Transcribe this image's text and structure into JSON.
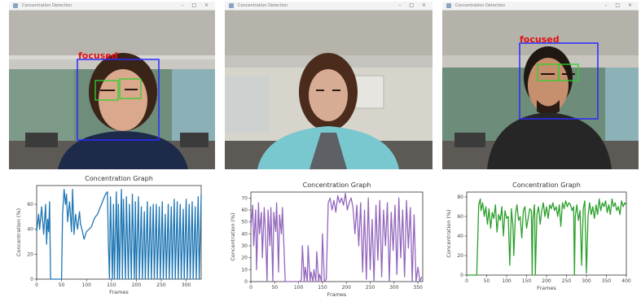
{
  "windows": [
    {
      "title": "Concentration Detection",
      "controls": "– □ ×",
      "focus_label": "focused",
      "person": "female-hoodie",
      "detection": true
    },
    {
      "title": "Concentration Detection",
      "controls": "– □ ×",
      "focus_label": "",
      "person": "female-blue",
      "detection": false
    },
    {
      "title": "Concentration Detection",
      "controls": "– □ ×",
      "focus_label": "focused",
      "person": "male-jacket",
      "detection": true
    }
  ],
  "colors": {
    "face_box": "#2a2aff",
    "eye_box": "#2ed12e",
    "focus_text": "#e01010"
  },
  "chart_data": [
    {
      "type": "line",
      "title": "Concentration Graph",
      "xlabel": "Frames",
      "ylabel": "Concentration (%)",
      "xlim": [
        0,
        330
      ],
      "ylim": [
        0,
        75
      ],
      "xticks": [
        0,
        50,
        100,
        150,
        200,
        250,
        300
      ],
      "yticks": [
        0,
        20,
        40,
        60
      ],
      "color": "#1f77b4",
      "series": [
        {
          "x": [
            0,
            4,
            6,
            10,
            14,
            18,
            20,
            22,
            24,
            26,
            28,
            32,
            35,
            38,
            45,
            50,
            52,
            55,
            58,
            60,
            62,
            66,
            70,
            72,
            75,
            78,
            82,
            86,
            88,
            92,
            95,
            100,
            105,
            110,
            115,
            118,
            122,
            126,
            130,
            134,
            138,
            142,
            144,
            146,
            148,
            152,
            154,
            156,
            160,
            162,
            164,
            166,
            170,
            172,
            174,
            178,
            180,
            184,
            186,
            190,
            192,
            196,
            198,
            200,
            204,
            206,
            210,
            212,
            216,
            218,
            222,
            224,
            228,
            230,
            234,
            236,
            240,
            242,
            246,
            248,
            252,
            254,
            258,
            260,
            264,
            266,
            270,
            272,
            276,
            278,
            282,
            284,
            288,
            290,
            294,
            296,
            300,
            302,
            306,
            308,
            312,
            314,
            318,
            320,
            324,
            326,
            330
          ],
          "y": [
            38,
            52,
            40,
            58,
            36,
            60,
            28,
            48,
            38,
            62,
            0,
            0,
            0,
            0,
            0,
            0,
            52,
            72,
            60,
            68,
            46,
            62,
            38,
            72,
            36,
            52,
            40,
            54,
            44,
            38,
            32,
            38,
            40,
            42,
            48,
            50,
            52,
            56,
            60,
            64,
            68,
            70,
            28,
            0,
            66,
            0,
            60,
            0,
            70,
            0,
            60,
            0,
            72,
            0,
            64,
            0,
            66,
            0,
            60,
            0,
            68,
            0,
            62,
            0,
            66,
            0,
            58,
            0,
            54,
            0,
            62,
            0,
            58,
            0,
            60,
            0,
            60,
            0,
            58,
            0,
            62,
            0,
            52,
            0,
            60,
            0,
            58,
            0,
            64,
            0,
            62,
            0,
            60,
            0,
            56,
            0,
            64,
            0,
            60,
            0,
            62,
            0,
            58,
            0,
            66,
            0,
            68
          ]
        }
      ]
    },
    {
      "type": "line",
      "title": "Concentration Graph",
      "xlabel": "Frames",
      "ylabel": "Concentration (%)",
      "xlim": [
        0,
        360
      ],
      "ylim": [
        0,
        75
      ],
      "xticks": [
        0,
        50,
        100,
        150,
        200,
        250,
        300,
        350
      ],
      "yticks": [
        0,
        10,
        20,
        30,
        40,
        50,
        60,
        70
      ],
      "color": "#9467bd",
      "series": [
        {
          "x": [
            0,
            4,
            6,
            10,
            12,
            16,
            18,
            22,
            24,
            28,
            30,
            34,
            36,
            40,
            42,
            46,
            48,
            52,
            54,
            58,
            60,
            64,
            66,
            70,
            72,
            76,
            80,
            85,
            88,
            92,
            96,
            100,
            103,
            106,
            108,
            112,
            114,
            118,
            120,
            124,
            126,
            130,
            132,
            136,
            138,
            142,
            144,
            148,
            150,
            154,
            158,
            162,
            166,
            170,
            174,
            178,
            182,
            186,
            190,
            194,
            198,
            202,
            206,
            210,
            214,
            218,
            222,
            226,
            230,
            234,
            238,
            242,
            246,
            250,
            254,
            258,
            262,
            266,
            270,
            274,
            278,
            282,
            286,
            290,
            294,
            298,
            302,
            306,
            310,
            314,
            318,
            322,
            326,
            330,
            334,
            338,
            342,
            346,
            350,
            354,
            358
          ],
          "y": [
            45,
            64,
            30,
            60,
            10,
            66,
            40,
            58,
            20,
            62,
            46,
            0,
            60,
            30,
            62,
            0,
            58,
            42,
            66,
            8,
            56,
            40,
            62,
            22,
            0,
            0,
            0,
            0,
            0,
            0,
            0,
            0,
            0,
            2,
            30,
            0,
            12,
            0,
            30,
            0,
            8,
            0,
            10,
            0,
            25,
            0,
            6,
            0,
            40,
            0,
            2,
            66,
            70,
            60,
            68,
            58,
            72,
            66,
            70,
            64,
            74,
            60,
            66,
            70,
            62,
            40,
            64,
            30,
            66,
            8,
            60,
            2,
            70,
            10,
            52,
            0,
            64,
            18,
            68,
            4,
            60,
            30,
            66,
            0,
            58,
            26,
            64,
            6,
            70,
            20,
            60,
            4,
            68,
            28,
            62,
            0,
            56,
            0,
            12,
            0,
            4
          ]
        }
      ]
    },
    {
      "type": "line",
      "title": "Concentration Graph",
      "xlabel": "Frames",
      "ylabel": "Concentration (%)",
      "xlim": [
        0,
        400
      ],
      "ylim": [
        0,
        85
      ],
      "xticks": [
        0,
        50,
        100,
        150,
        200,
        250,
        300,
        350,
        400
      ],
      "yticks": [
        0,
        20,
        40,
        60,
        80
      ],
      "color": "#2ca02c",
      "series": [
        {
          "x": [
            0,
            10,
            20,
            25,
            28,
            30,
            34,
            36,
            40,
            44,
            48,
            52,
            56,
            60,
            64,
            68,
            72,
            76,
            80,
            84,
            88,
            92,
            96,
            100,
            104,
            108,
            112,
            116,
            118,
            122,
            126,
            130,
            134,
            138,
            142,
            146,
            150,
            154,
            158,
            162,
            164,
            166,
            170,
            172,
            176,
            180,
            184,
            188,
            192,
            196,
            200,
            204,
            208,
            212,
            216,
            220,
            224,
            228,
            232,
            236,
            240,
            244,
            248,
            252,
            256,
            260,
            264,
            268,
            270,
            272,
            276,
            280,
            284,
            288,
            292,
            296,
            300,
            304,
            308,
            312,
            316,
            320,
            324,
            328,
            332,
            336,
            340,
            344,
            348,
            352,
            356,
            360,
            364,
            368,
            372,
            376,
            380,
            384,
            388,
            392,
            396,
            400
          ],
          "y": [
            0,
            0,
            0,
            0,
            40,
            72,
            78,
            66,
            74,
            60,
            70,
            52,
            68,
            48,
            64,
            58,
            72,
            44,
            62,
            56,
            70,
            40,
            66,
            58,
            60,
            10,
            68,
            50,
            20,
            62,
            72,
            56,
            60,
            38,
            66,
            70,
            48,
            58,
            68,
            66,
            0,
            58,
            72,
            0,
            62,
            70,
            52,
            66,
            74,
            60,
            70,
            58,
            72,
            68,
            74,
            66,
            70,
            60,
            72,
            50,
            74,
            68,
            76,
            70,
            74,
            72,
            66,
            70,
            0,
            60,
            72,
            56,
            66,
            10,
            68,
            76,
            2,
            60,
            74,
            62,
            70,
            58,
            72,
            62,
            78,
            66,
            74,
            70,
            76,
            64,
            72,
            62,
            78,
            70,
            74,
            66,
            70,
            62,
            76,
            70,
            74,
            72
          ]
        }
      ]
    }
  ]
}
